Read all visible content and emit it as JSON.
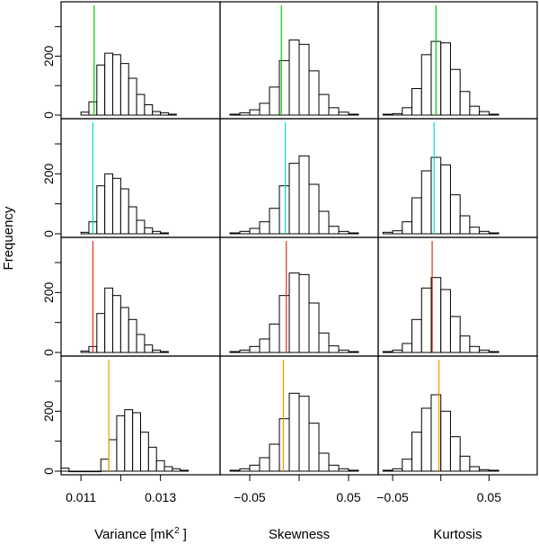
{
  "chart_data": {
    "type": "bar",
    "title": "",
    "ylabel": "Frequency",
    "ylim": [
      0,
      360
    ],
    "y_ticks": [
      0,
      200
    ],
    "y_tick_labels": [
      "0",
      "200"
    ],
    "y_unlabeled_ticks": [
      100,
      300
    ],
    "columns": [
      {
        "xlabel": "Variance [mK",
        "xlabel_sup": "2",
        "xlabel_tail": " ]",
        "xlim": [
          0.0105,
          0.0145
        ],
        "x_ticks": [
          0.011,
          0.013
        ],
        "x_tick_labels": [
          "0.011",
          "0.013"
        ],
        "x_unlabeled_ticks": [
          0.012
        ]
      },
      {
        "xlabel": "Skewness",
        "xlabel_sup": "",
        "xlabel_tail": "",
        "xlim": [
          -0.08,
          0.08
        ],
        "x_ticks": [
          -0.05,
          0.05
        ],
        "x_tick_labels": [
          "−0.05",
          "0.05"
        ],
        "x_unlabeled_ticks": [
          0
        ]
      },
      {
        "xlabel": "Kurtosis",
        "xlabel_sup": "",
        "xlabel_tail": "",
        "xlim": [
          -0.065,
          0.1
        ],
        "x_ticks": [
          -0.05,
          0.05
        ],
        "x_tick_labels": [
          "−0.05",
          "0.05"
        ],
        "x_unlabeled_ticks": [
          0
        ]
      }
    ],
    "rows": [
      {
        "line_color": "#00cc00"
      },
      {
        "line_color": "#00dddd"
      },
      {
        "line_color": "#dd3311"
      },
      {
        "line_color": "#ee9900"
      }
    ],
    "panels": [
      [
        {
          "bin_start": 0.011,
          "bin_width": 0.0002,
          "counts": [
            10,
            45,
            170,
            210,
            205,
            175,
            125,
            70,
            35,
            12,
            8,
            3
          ],
          "marker": 0.01133
        },
        {
          "bin_start": -0.07,
          "bin_width": 0.01,
          "counts": [
            3,
            8,
            18,
            40,
            95,
            185,
            255,
            240,
            150,
            70,
            25,
            10,
            3
          ],
          "marker": -0.018
        },
        {
          "bin_start": -0.06,
          "bin_width": 0.01,
          "counts": [
            3,
            5,
            25,
            90,
            205,
            250,
            245,
            155,
            80,
            30,
            12,
            3
          ],
          "marker": -0.005
        }
      ],
      [
        {
          "bin_start": 0.011,
          "bin_width": 0.0002,
          "counts": [
            5,
            40,
            160,
            200,
            185,
            150,
            90,
            45,
            20,
            8,
            3
          ],
          "marker": 0.0113
        },
        {
          "bin_start": -0.07,
          "bin_width": 0.01,
          "counts": [
            3,
            8,
            18,
            40,
            85,
            160,
            235,
            260,
            165,
            75,
            25,
            8,
            3
          ],
          "marker": -0.014
        },
        {
          "bin_start": -0.06,
          "bin_width": 0.01,
          "counts": [
            5,
            10,
            40,
            120,
            210,
            255,
            230,
            130,
            60,
            22,
            8,
            3
          ],
          "marker": -0.007
        }
      ],
      [
        {
          "bin_start": 0.011,
          "bin_width": 0.0002,
          "counts": [
            5,
            20,
            130,
            215,
            190,
            150,
            110,
            60,
            25,
            8,
            3
          ],
          "marker": 0.0113
        },
        {
          "bin_start": -0.07,
          "bin_width": 0.01,
          "counts": [
            3,
            8,
            20,
            45,
            95,
            190,
            265,
            260,
            165,
            65,
            22,
            8,
            3
          ],
          "marker": -0.013
        },
        {
          "bin_start": -0.06,
          "bin_width": 0.01,
          "counts": [
            3,
            8,
            30,
            110,
            215,
            250,
            210,
            120,
            55,
            20,
            8,
            3
          ],
          "marker": -0.009
        }
      ],
      [
        {
          "bin_start": 0.0105,
          "bin_width": 0.0002,
          "counts": [
            10,
            0,
            0,
            0,
            0,
            40,
            105,
            185,
            205,
            195,
            130,
            80,
            35,
            15,
            8,
            3
          ],
          "marker": 0.0117
        },
        {
          "bin_start": -0.07,
          "bin_width": 0.01,
          "counts": [
            3,
            8,
            20,
            45,
            90,
            175,
            260,
            250,
            160,
            60,
            20,
            8,
            3
          ],
          "marker": -0.016
        },
        {
          "bin_start": -0.06,
          "bin_width": 0.01,
          "counts": [
            3,
            8,
            40,
            130,
            210,
            255,
            200,
            115,
            50,
            15,
            5,
            3
          ],
          "marker": -0.002
        }
      ]
    ]
  }
}
